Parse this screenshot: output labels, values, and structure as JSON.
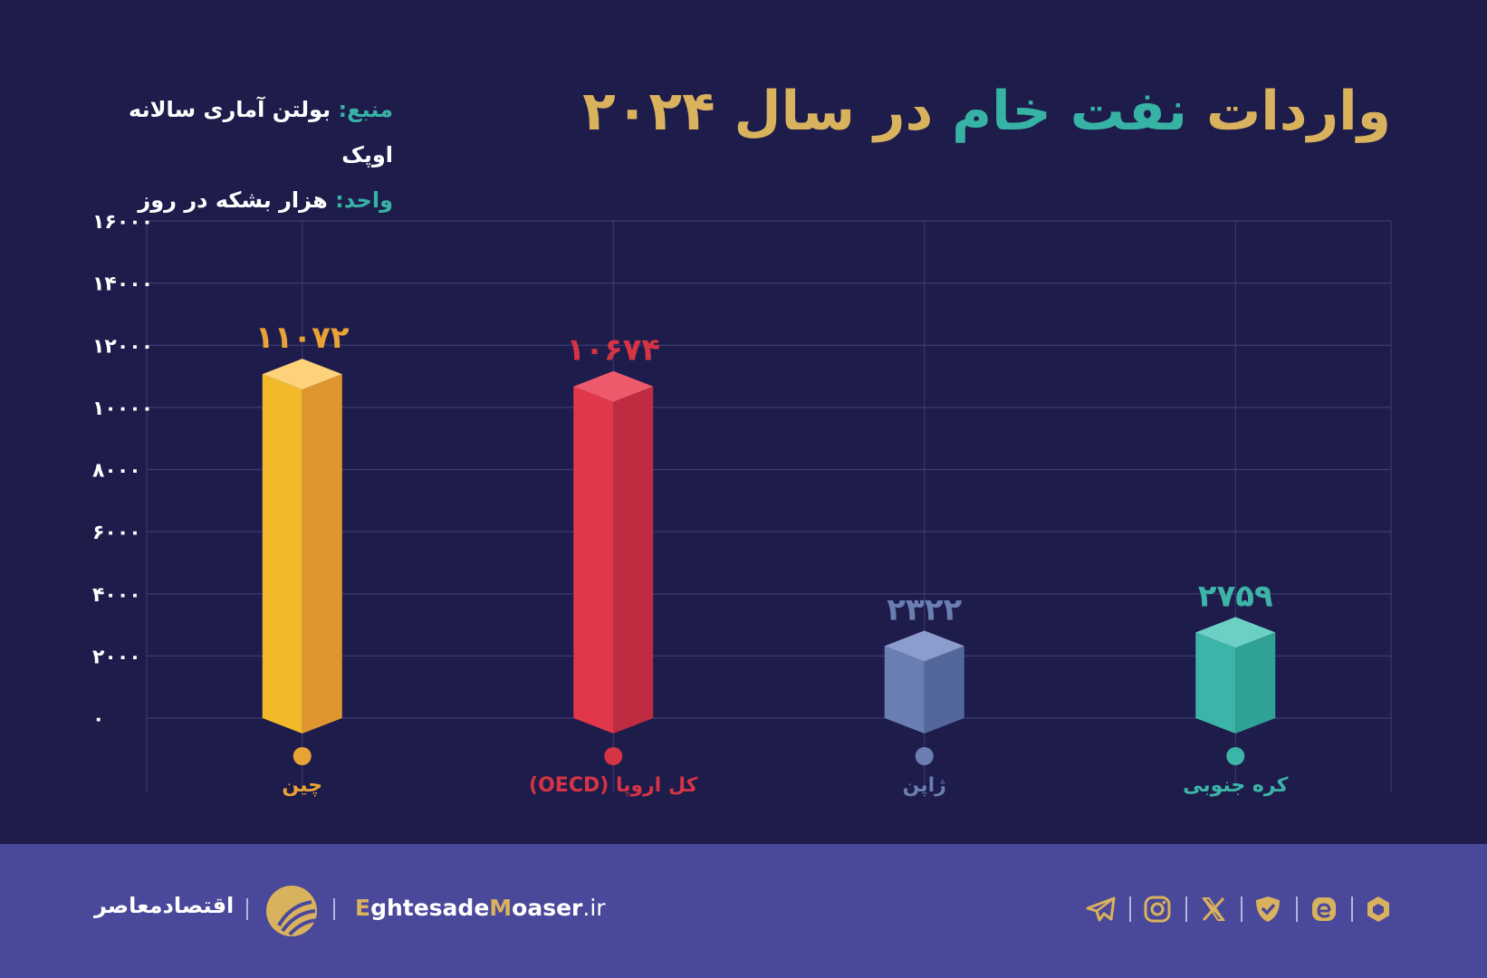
{
  "header": {
    "title_part1": "واردات",
    "title_part2": "نفت خام",
    "title_part3": "در سال ۲۰۲۴",
    "source_key": "منبع:",
    "source_value": "بولتن آماری سالانه اوپک",
    "unit_key": "واحد:",
    "unit_value": "هزار بشکه در روز"
  },
  "chart_data": {
    "type": "bar",
    "categories": [
      "چین",
      "کل اروپا (OECD)",
      "ژاپن",
      "کره جنوبی"
    ],
    "values": [
      11072,
      10674,
      2322,
      2759
    ],
    "value_labels": [
      "۱۱۰۷۲",
      "۱۰۶۷۴",
      "۲۳۲۲",
      "۲۷۵۹"
    ],
    "colors": [
      "#f2b92a",
      "#e0374a",
      "#6b7eb2",
      "#3cb4a7"
    ],
    "side_colors": [
      "#e0962e",
      "#bf2b40",
      "#54679a",
      "#2fa296"
    ],
    "top_colors": [
      "#fdd27a",
      "#ee5a6c",
      "#8b9ccd",
      "#6dd0c4"
    ],
    "label_colors": [
      "#e8a236",
      "#d53444",
      "#6b7eb2",
      "#3cb4a7"
    ],
    "y_ticks": [
      0,
      2000,
      4000,
      6000,
      8000,
      10000,
      12000,
      14000,
      16000
    ],
    "y_tick_labels": [
      "۰",
      "۲۰۰۰",
      "۴۰۰۰",
      "۶۰۰۰",
      "۸۰۰۰",
      "۱۰۰۰۰",
      "۱۲۰۰۰",
      "۱۴۰۰۰",
      "۱۶۰۰۰"
    ],
    "ylim": [
      0,
      16000
    ],
    "grid": true,
    "bar_style": "3d-prism"
  },
  "footer": {
    "brand": "اقتصادمعاصر",
    "site_e": "E",
    "site_part1": "ghtesade",
    "site_m": "M",
    "site_part2": "oaser",
    "site_tld": ".ir",
    "social_icons": [
      "hexagon-icon",
      "e-logo-icon",
      "shield-check-icon",
      "x-icon",
      "instagram-icon",
      "telegram-icon"
    ]
  }
}
